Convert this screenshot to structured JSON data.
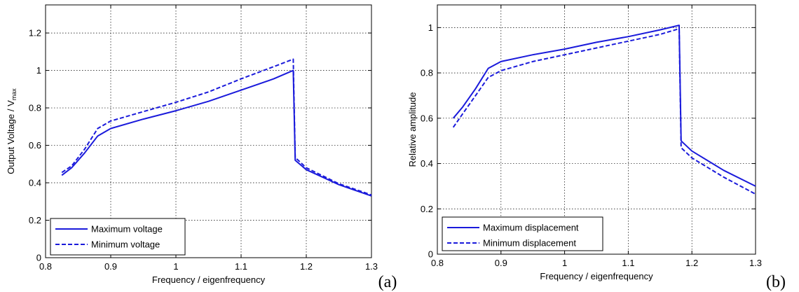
{
  "chart_data": [
    {
      "type": "line",
      "panel_label": "(a)",
      "xlabel": "Frequency / eigenfrequency",
      "ylabel_main": "Output Voltage / V",
      "ylabel_sub": "max",
      "xlim": [
        0.8,
        1.3
      ],
      "ylim": [
        0,
        1.35
      ],
      "xticks": [
        0.8,
        0.9,
        1,
        1.1,
        1.2,
        1.3
      ],
      "xtick_labels": [
        "0.8",
        "0.9",
        "1",
        "1.1",
        "1.2",
        "1.3"
      ],
      "yticks": [
        0,
        0.2,
        0.4,
        0.6,
        0.8,
        1,
        1.2
      ],
      "ytick_labels": [
        "0",
        "0.2",
        "0.4",
        "0.6",
        "0.8",
        "1",
        "1.2"
      ],
      "grid": true,
      "legend_position": "bottom-left",
      "color": "#1a1adb",
      "series": [
        {
          "name": "Maximum voltage",
          "style": "solid",
          "x": [
            0.825,
            0.84,
            0.86,
            0.88,
            0.9,
            0.95,
            1.0,
            1.05,
            1.1,
            1.15,
            1.18,
            1.183,
            1.2,
            1.25,
            1.3
          ],
          "y": [
            0.44,
            0.48,
            0.56,
            0.65,
            0.69,
            0.74,
            0.785,
            0.835,
            0.895,
            0.955,
            1.0,
            0.52,
            0.47,
            0.39,
            0.33
          ]
        },
        {
          "name": "Minimum voltage",
          "style": "dashed",
          "x": [
            0.825,
            0.84,
            0.86,
            0.88,
            0.9,
            0.95,
            1.0,
            1.05,
            1.1,
            1.15,
            1.18,
            1.183,
            1.2,
            1.25,
            1.3
          ],
          "y": [
            0.455,
            0.49,
            0.58,
            0.69,
            0.73,
            0.78,
            0.83,
            0.885,
            0.955,
            1.02,
            1.06,
            0.535,
            0.48,
            0.395,
            0.335
          ]
        }
      ]
    },
    {
      "type": "line",
      "panel_label": "(b)",
      "xlabel": "Frequency / eigenfrequency",
      "ylabel_main": "Relative amplitude",
      "ylabel_sub": "",
      "xlim": [
        0.8,
        1.3
      ],
      "ylim": [
        0,
        1.1
      ],
      "xticks": [
        0.8,
        0.9,
        1,
        1.1,
        1.2,
        1.3
      ],
      "xtick_labels": [
        "0.8",
        "0.9",
        "1",
        "1.1",
        "1.2",
        "1.3"
      ],
      "yticks": [
        0,
        0.2,
        0.4,
        0.6,
        0.8,
        1
      ],
      "ytick_labels": [
        "0",
        "0.2",
        "0.4",
        "0.6",
        "0.8",
        "1"
      ],
      "grid": true,
      "legend_position": "bottom-left",
      "color": "#1a1adb",
      "series": [
        {
          "name": "Maximum displacement",
          "style": "solid",
          "x": [
            0.825,
            0.84,
            0.86,
            0.88,
            0.9,
            0.95,
            1.0,
            1.05,
            1.1,
            1.15,
            1.18,
            1.183,
            1.2,
            1.25,
            1.3
          ],
          "y": [
            0.6,
            0.65,
            0.73,
            0.82,
            0.85,
            0.88,
            0.905,
            0.935,
            0.96,
            0.99,
            1.01,
            0.5,
            0.455,
            0.37,
            0.3
          ]
        },
        {
          "name": "Minimum displacement",
          "style": "dashed",
          "x": [
            0.825,
            0.84,
            0.86,
            0.88,
            0.9,
            0.95,
            1.0,
            1.05,
            1.1,
            1.15,
            1.18,
            1.183,
            1.2,
            1.25,
            1.3
          ],
          "y": [
            0.56,
            0.62,
            0.7,
            0.78,
            0.81,
            0.85,
            0.88,
            0.91,
            0.94,
            0.97,
            0.995,
            0.47,
            0.425,
            0.34,
            0.265
          ]
        }
      ]
    }
  ]
}
